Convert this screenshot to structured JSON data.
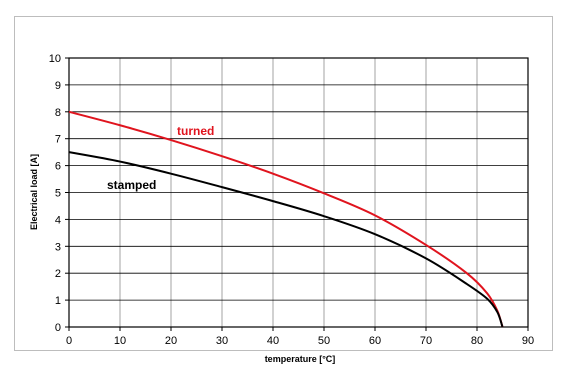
{
  "chart_data": {
    "type": "line",
    "xlabel": "temperature [°C]",
    "ylabel": "Electrical load [A]",
    "xlim": [
      0,
      90
    ],
    "ylim": [
      0,
      10
    ],
    "xticks": [
      0,
      10,
      20,
      30,
      40,
      50,
      60,
      70,
      80,
      90
    ],
    "yticks": [
      0,
      1,
      2,
      3,
      4,
      5,
      6,
      7,
      8,
      9,
      10
    ],
    "grid": true,
    "series": [
      {
        "name": "turned",
        "color": "#e0141e",
        "x": [
          0,
          10,
          20,
          30,
          40,
          50,
          60,
          70,
          78,
          82,
          84,
          85
        ],
        "y": [
          8.0,
          7.5,
          6.95,
          6.35,
          5.7,
          4.97,
          4.15,
          3.05,
          2.0,
          1.25,
          0.6,
          0
        ]
      },
      {
        "name": "stamped",
        "color": "#000000",
        "x": [
          0,
          10,
          20,
          30,
          40,
          50,
          60,
          70,
          78,
          82,
          84,
          85
        ],
        "y": [
          6.5,
          6.15,
          5.7,
          5.2,
          4.68,
          4.12,
          3.45,
          2.55,
          1.6,
          1.05,
          0.55,
          0
        ]
      }
    ]
  }
}
